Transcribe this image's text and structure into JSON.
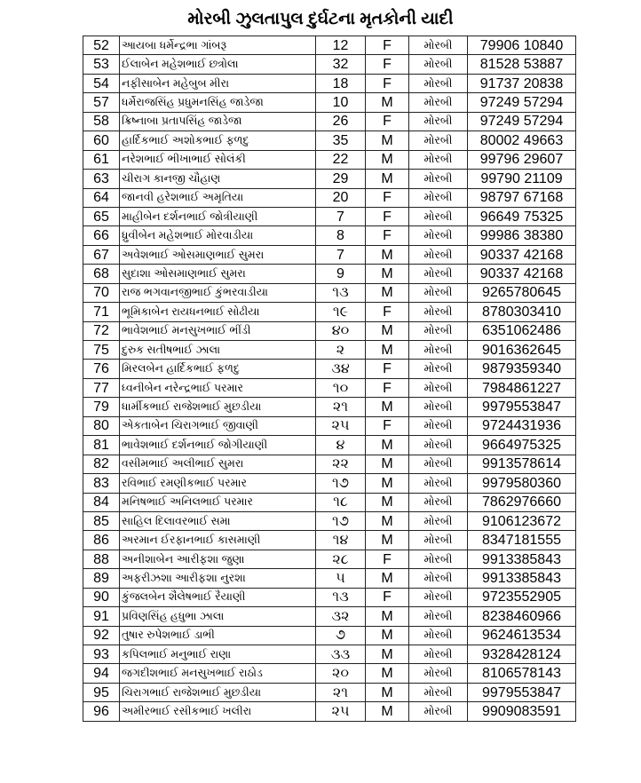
{
  "title": "મોરબી ઝુલતાપુલ દુર્ઘટના મૃતકોની યાદી",
  "rows": [
    {
      "no": "52",
      "name": "આયબા ધર્મેન્દ્રભા ગાંબરૂ",
      "age": "12",
      "gender": "F",
      "city": "મોરબી",
      "phone": "79906 10840"
    },
    {
      "no": "53",
      "name": "ઈલાબેન મહેશભાઈ છત્રોલા",
      "age": "32",
      "gender": "F",
      "city": "મોરબી",
      "phone": "81528 53887"
    },
    {
      "no": "54",
      "name": "નફીસાબેન મહેબુબ મીરા",
      "age": "18",
      "gender": "F",
      "city": "મોરબી",
      "phone": "91737 20838"
    },
    {
      "no": "57",
      "name": "ધર્મેરાજસિંહ પ્રધુમનસિંહ જાડેજા",
      "age": "10",
      "gender": "M",
      "city": "મોરબી",
      "phone": "97249 57294"
    },
    {
      "no": "58",
      "name": "ક્રિષ્નાબા પ્રતાપસિંહ જાડેજા",
      "age": "26",
      "gender": "F",
      "city": "મોરબી",
      "phone": "97249 57294"
    },
    {
      "no": "60",
      "name": "હાર્દિકભાઈ અશોકભાઈ ફળદુ",
      "age": "35",
      "gender": "M",
      "city": "મોરબી",
      "phone": "80002 49663"
    },
    {
      "no": "61",
      "name": "નરેશભાઈ ભીખાભાઈ સોલંકી",
      "age": "22",
      "gender": "M",
      "city": "મોરબી",
      "phone": "99796 29607"
    },
    {
      "no": "63",
      "name": "ચીરાગ કાનજી ચૌહાણ",
      "age": "29",
      "gender": "M",
      "city": "મોરબી",
      "phone": "99790 21109"
    },
    {
      "no": "64",
      "name": "જાનવી હરેશભાઈ અમૃતિયા",
      "age": "20",
      "gender": "F",
      "city": "મોરબી",
      "phone": "98797 67168"
    },
    {
      "no": "65",
      "name": "માહીબેન દર્શનભાઈ જોત્રીયાણી",
      "age": "7",
      "gender": "F",
      "city": "મોરબી",
      "phone": "96649 75325"
    },
    {
      "no": "66",
      "name": "ધ્રુવીબેન મહેશભાઈ મોરવાડીયા",
      "age": "8",
      "gender": "F",
      "city": "મોરબી",
      "phone": "99986 38380"
    },
    {
      "no": "67",
      "name": "અવેશભાઈ ઓસમાણભાઈ સુમરા",
      "age": "7",
      "gender": "M",
      "city": "મોરબી",
      "phone": "90337 42168"
    },
    {
      "no": "68",
      "name": "સુદાશા ઓસમાણભાઈ સુમરા",
      "age": "9",
      "gender": "M",
      "city": "મોરબી",
      "phone": "90337 42168"
    },
    {
      "no": "70",
      "name": "રાજ ભગવાનજીભાઈ કુંભરવાડીયા",
      "age": "૧૩",
      "gender": "M",
      "city": "મોરબી",
      "phone": "9265780645"
    },
    {
      "no": "71",
      "name": "ભૂમિકાબેન રાયધનભાઈ સોઢીયા",
      "age": "૧૯",
      "gender": "F",
      "city": "મોરબી",
      "phone": "8780303410"
    },
    {
      "no": "72",
      "name": "ભાવેશભાઈ મનસુખભાઈ ભીંડી",
      "age": "૪૦",
      "gender": "M",
      "city": "મોરબી",
      "phone": "6351062486"
    },
    {
      "no": "75",
      "name": "દુરુક સતીષભાઈ ઝાલા",
      "age": "૨",
      "gender": "M",
      "city": "મોરબી",
      "phone": "9016362645"
    },
    {
      "no": "76",
      "name": "મિરલબેન હાર્દિકભાઈ ફળદુ",
      "age": "૩૪",
      "gender": "F",
      "city": "મોરબી",
      "phone": "9879359340"
    },
    {
      "no": "77",
      "name": "ધ્વનીબેન નરેન્દ્રભાઈ પરમાર",
      "age": "૧૦",
      "gender": "F",
      "city": "મોરબી",
      "phone": "7984861227"
    },
    {
      "no": "79",
      "name": "ધાર્મીકભાઈ રાજેશભાઈ મુછડીયા",
      "age": "૨૧",
      "gender": "M",
      "city": "મોરબી",
      "phone": "9979553847"
    },
    {
      "no": "80",
      "name": "એકતાબેન ચિરાગભાઈ જીવાણી",
      "age": "૨૫",
      "gender": "F",
      "city": "મોરબી",
      "phone": "9724431936"
    },
    {
      "no": "81",
      "name": "ભાવેશભાઈ દર્શનભાઈ જોગીયાણી",
      "age": "૪",
      "gender": "M",
      "city": "મોરબી",
      "phone": "9664975325"
    },
    {
      "no": "82",
      "name": "વસીમભાઈ અલીભાઈ સુમરા",
      "age": "૨૨",
      "gender": "M",
      "city": "મોરબી",
      "phone": "9913578614"
    },
    {
      "no": "83",
      "name": "રવિભાઈ રમણીકભાઈ પરમાર",
      "age": "૧૭",
      "gender": "M",
      "city": "મોરબી",
      "phone": "9979580360"
    },
    {
      "no": "84",
      "name": "મનિષભાઈ અનિલભાઈ પરમાર",
      "age": "૧૮",
      "gender": "M",
      "city": "મોરબી",
      "phone": "7862976660"
    },
    {
      "no": "85",
      "name": "સાહિલ દિલાવરભાઈ સમા",
      "age": "૧૭",
      "gender": "M",
      "city": "મોરબી",
      "phone": "9106123672"
    },
    {
      "no": "86",
      "name": "અરમાન ઈરફાનભાઈ કાસમાણી",
      "age": "૧૪",
      "gender": "M",
      "city": "મોરબી",
      "phone": "8347181555"
    },
    {
      "no": "88",
      "name": "અનીશાબેન આરીફશા જુણા",
      "age": "૨૮",
      "gender": "F",
      "city": "મોરબી",
      "phone": "9913385843"
    },
    {
      "no": "89",
      "name": "અફરીઝશા આરીફશા નુરશા",
      "age": "૫",
      "gender": "M",
      "city": "મોરબી",
      "phone": "9913385843"
    },
    {
      "no": "90",
      "name": "કુંજલબેન શૈલેષભાઈ રૈયાણી",
      "age": "૧૩",
      "gender": "F",
      "city": "મોરબી",
      "phone": "9723552905"
    },
    {
      "no": "91",
      "name": "પ્રવિણસિંહ હધુભા ઝાલા",
      "age": "૩૨",
      "gender": "M",
      "city": "મોરબી",
      "phone": "8238460966"
    },
    {
      "no": "92",
      "name": "તુષાર રુપેશભાઈ ડાભી",
      "age": "૭",
      "gender": "M",
      "city": "મોરબી",
      "phone": "9624613534"
    },
    {
      "no": "93",
      "name": "કપિલભાઈ મનુભાઈ રાણા",
      "age": "૩૩",
      "gender": "M",
      "city": "મોરબી",
      "phone": "9328428124"
    },
    {
      "no": "94",
      "name": "જગદીશભાઈ મનસુખભાઈ રાઠોડ",
      "age": "૨૦",
      "gender": "M",
      "city": "મોરબી",
      "phone": "8106578143"
    },
    {
      "no": "95",
      "name": "ચિરાગભાઈ રાજેશભાઈ મુછડીયા",
      "age": "૨૧",
      "gender": "M",
      "city": "મોરબી",
      "phone": "9979553847"
    },
    {
      "no": "96",
      "name": "અમીરભાઈ રસીકભાઈ ખલીરા",
      "age": "૨૫",
      "gender": "M",
      "city": "મોરબી",
      "phone": "9909083591"
    }
  ]
}
